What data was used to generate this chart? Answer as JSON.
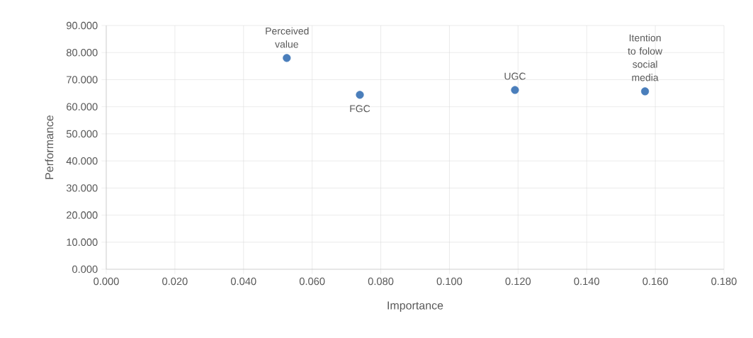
{
  "chart_data": {
    "type": "scatter",
    "xlabel": "Importance",
    "ylabel": "Performance",
    "x": [
      0.0526,
      0.0739,
      0.1191,
      0.157
    ],
    "series": [
      {
        "color": "#4a7ebb",
        "values": [
          78.0,
          64.4,
          66.2,
          65.7
        ]
      }
    ],
    "annotations": [
      {
        "text": "Perceived value",
        "x": 0.0526,
        "y": 78.0
      },
      {
        "text": "FGC",
        "x": 0.0739,
        "y": 64.4
      },
      {
        "text": "UGC",
        "x": 0.1191,
        "y": 66.2
      },
      {
        "text": "Itention to folow social media",
        "x": 0.157,
        "y": 65.7
      }
    ],
    "xlim": [
      0,
      0.18
    ],
    "xticks": [
      {
        "value": 0,
        "label": "0.000"
      },
      {
        "value": 0.02,
        "label": "0.020"
      },
      {
        "value": 0.04,
        "label": "0.040"
      },
      {
        "value": 0.06,
        "label": "0.060"
      },
      {
        "value": 0.08,
        "label": "0.080"
      },
      {
        "value": 0.1,
        "label": "0.100"
      },
      {
        "value": 0.12,
        "label": "0.120"
      },
      {
        "value": 0.14,
        "label": "0.140"
      },
      {
        "value": 0.16,
        "label": "0.160"
      },
      {
        "value": 0.18,
        "label": "0.180"
      }
    ],
    "ylim": [
      0,
      90
    ],
    "yticks": [
      {
        "value": 0,
        "label": "0.000"
      },
      {
        "value": 10,
        "label": "10.000"
      },
      {
        "value": 20,
        "label": "20.000"
      },
      {
        "value": 30,
        "label": "30.000"
      },
      {
        "value": 40,
        "label": "40.000"
      },
      {
        "value": 50,
        "label": "50.000"
      },
      {
        "value": 60,
        "label": "60.000"
      },
      {
        "value": 70,
        "label": "70.000"
      },
      {
        "value": 80,
        "label": "80.000"
      },
      {
        "value": 90,
        "label": "90.000"
      }
    ],
    "grid": true,
    "marker": "circle"
  }
}
